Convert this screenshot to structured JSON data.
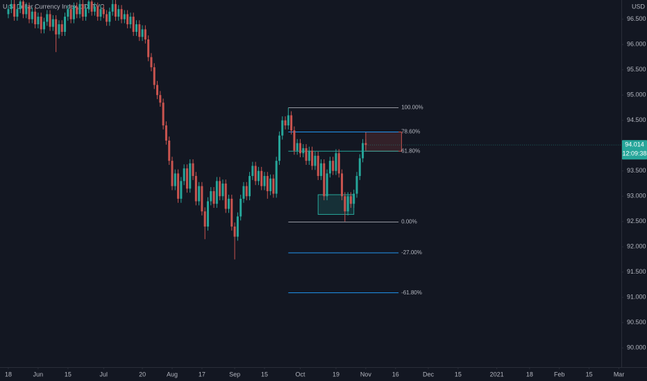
{
  "chart_data": {
    "type": "candlestick",
    "title": "U.S. Dollar Currency Index, 1D, TVC",
    "currency": "USD",
    "countdown": "12:09:38",
    "last_price": 94.014,
    "up_color": "#26a69a",
    "down_color": "#c9544f",
    "ylim": [
      89.62,
      96.88
    ],
    "yticks": [
      {
        "value": 90,
        "label": "90.000"
      },
      {
        "value": 90.5,
        "label": "90.500"
      },
      {
        "value": 91,
        "label": "91.000"
      },
      {
        "value": 91.5,
        "label": "91.500"
      },
      {
        "value": 92,
        "label": "92.000"
      },
      {
        "value": 92.5,
        "label": "92.500"
      },
      {
        "value": 93,
        "label": "93.000"
      },
      {
        "value": 93.5,
        "label": "93.500"
      },
      {
        "value": 94.5,
        "label": "94.500"
      },
      {
        "value": 95,
        "label": "95.000"
      },
      {
        "value": 95.5,
        "label": "95.500"
      },
      {
        "value": 96,
        "label": "96.000"
      },
      {
        "value": 96.5,
        "label": "96.500"
      }
    ],
    "xlim": [
      -2.8,
      205.8
    ],
    "xticks": [
      {
        "value": 0,
        "label": "18"
      },
      {
        "value": 10,
        "label": "Jun"
      },
      {
        "value": 20,
        "label": "15"
      },
      {
        "value": 32,
        "label": "Jul"
      },
      {
        "value": 45,
        "label": "20"
      },
      {
        "value": 55,
        "label": "Aug"
      },
      {
        "value": 65,
        "label": "17"
      },
      {
        "value": 76,
        "label": "Sep"
      },
      {
        "value": 86,
        "label": "15"
      },
      {
        "value": 98,
        "label": "Oct"
      },
      {
        "value": 110,
        "label": "19"
      },
      {
        "value": 120,
        "label": "Nov"
      },
      {
        "value": 130,
        "label": "16"
      },
      {
        "value": 141,
        "label": "Dec"
      },
      {
        "value": 151,
        "label": "15"
      },
      {
        "value": 164,
        "label": "2021"
      },
      {
        "value": 175,
        "label": "18"
      },
      {
        "value": 185,
        "label": "Feb"
      },
      {
        "value": 195,
        "label": "15"
      },
      {
        "value": 205,
        "label": "Mar"
      }
    ],
    "candles": [
      [
        96.6,
        96.78,
        96.52,
        96.7
      ],
      [
        96.7,
        96.88,
        96.62,
        96.8
      ],
      [
        96.8,
        96.88,
        96.47,
        96.55
      ],
      [
        96.55,
        96.78,
        96.47,
        96.7
      ],
      [
        96.7,
        96.93,
        96.62,
        96.85
      ],
      [
        96.85,
        96.93,
        96.52,
        96.6
      ],
      [
        96.6,
        96.83,
        96.52,
        96.75
      ],
      [
        96.75,
        96.83,
        96.42,
        96.5
      ],
      [
        96.5,
        96.73,
        96.42,
        96.65
      ],
      [
        96.65,
        96.73,
        96.32,
        96.4
      ],
      [
        96.4,
        96.63,
        96.32,
        96.55
      ],
      [
        96.55,
        96.63,
        96.22,
        96.3
      ],
      [
        96.3,
        96.53,
        96.22,
        96.45
      ],
      [
        96.45,
        96.68,
        96.37,
        96.6
      ],
      [
        96.6,
        96.68,
        96.27,
        96.35
      ],
      [
        96.35,
        96.58,
        96.27,
        96.5
      ],
      [
        96.5,
        96.58,
        95.85,
        96.2
      ],
      [
        96.2,
        96.48,
        96.12,
        96.4
      ],
      [
        96.4,
        96.48,
        96.17,
        96.25
      ],
      [
        96.25,
        96.63,
        96.17,
        96.55
      ],
      [
        96.55,
        96.78,
        96.47,
        96.7
      ],
      [
        96.7,
        96.78,
        96.42,
        96.5
      ],
      [
        96.5,
        96.83,
        96.42,
        96.75
      ],
      [
        96.75,
        96.83,
        96.52,
        96.6
      ],
      [
        96.6,
        96.88,
        96.52,
        96.8
      ],
      [
        96.8,
        96.88,
        96.47,
        96.55
      ],
      [
        96.55,
        96.78,
        96.47,
        96.7
      ],
      [
        96.7,
        96.93,
        96.62,
        96.85
      ],
      [
        96.85,
        96.93,
        96.57,
        96.65
      ],
      [
        96.65,
        96.83,
        96.57,
        96.75
      ],
      [
        96.75,
        96.83,
        96.47,
        96.55
      ],
      [
        96.55,
        96.78,
        96.47,
        96.7
      ],
      [
        96.7,
        96.78,
        96.52,
        96.6
      ],
      [
        96.6,
        96.68,
        96.37,
        96.45
      ],
      [
        96.45,
        96.73,
        96.37,
        96.65
      ],
      [
        96.65,
        96.88,
        96.57,
        96.8
      ],
      [
        96.8,
        96.88,
        96.47,
        96.55
      ],
      [
        96.55,
        96.78,
        96.47,
        96.7
      ],
      [
        96.7,
        96.78,
        96.42,
        96.5
      ],
      [
        96.5,
        96.68,
        96.42,
        96.6
      ],
      [
        96.6,
        96.68,
        96.32,
        96.4
      ],
      [
        96.4,
        96.63,
        96.32,
        96.55
      ],
      [
        96.55,
        96.63,
        96.17,
        96.25
      ],
      [
        96.25,
        96.48,
        96.17,
        96.4
      ],
      [
        96.4,
        96.48,
        96.07,
        96.15
      ],
      [
        96.15,
        96.38,
        96.07,
        96.3
      ],
      [
        96.3,
        96.38,
        96.02,
        96.1
      ],
      [
        96.1,
        96.18,
        95.67,
        95.75
      ],
      [
        95.75,
        95.83,
        95.47,
        95.55
      ],
      [
        95.55,
        95.63,
        95.12,
        95.2
      ],
      [
        95.2,
        95.28,
        94.92,
        95.0
      ],
      [
        95.0,
        95.08,
        94.77,
        94.85
      ],
      [
        94.85,
        94.93,
        94.32,
        94.4
      ],
      [
        94.4,
        94.48,
        94.02,
        94.1
      ],
      [
        94.1,
        94.18,
        93.62,
        93.7
      ],
      [
        93.7,
        93.78,
        93.12,
        93.2
      ],
      [
        93.2,
        93.53,
        93.12,
        93.45
      ],
      [
        93.45,
        93.53,
        92.87,
        92.95
      ],
      [
        92.95,
        93.38,
        92.87,
        93.3
      ],
      [
        93.3,
        93.63,
        93.22,
        93.55
      ],
      [
        93.55,
        93.63,
        93.07,
        93.15
      ],
      [
        93.15,
        93.73,
        93.07,
        93.65
      ],
      [
        93.65,
        93.73,
        93.32,
        93.4
      ],
      [
        93.4,
        93.48,
        92.82,
        92.9
      ],
      [
        92.9,
        93.28,
        92.82,
        93.2
      ],
      [
        93.2,
        93.28,
        92.62,
        92.7
      ],
      [
        92.7,
        92.78,
        92.15,
        92.4
      ],
      [
        92.4,
        92.98,
        92.32,
        92.9
      ],
      [
        92.9,
        93.18,
        92.82,
        93.1
      ],
      [
        93.1,
        93.18,
        92.77,
        92.85
      ],
      [
        92.85,
        93.38,
        92.77,
        93.3
      ],
      [
        93.3,
        93.38,
        92.92,
        93.0
      ],
      [
        93.0,
        93.33,
        92.92,
        93.25
      ],
      [
        93.25,
        93.33,
        92.67,
        92.75
      ],
      [
        92.75,
        93.03,
        92.67,
        92.95
      ],
      [
        92.95,
        93.03,
        92.32,
        92.4
      ],
      [
        92.4,
        92.48,
        91.75,
        92.2
      ],
      [
        92.2,
        92.68,
        92.12,
        92.6
      ],
      [
        92.6,
        93.03,
        92.52,
        92.95
      ],
      [
        92.95,
        93.28,
        92.87,
        93.2
      ],
      [
        93.2,
        93.28,
        92.92,
        93.0
      ],
      [
        93.0,
        93.48,
        92.92,
        93.4
      ],
      [
        93.4,
        93.68,
        93.32,
        93.6
      ],
      [
        93.6,
        93.68,
        93.22,
        93.3
      ],
      [
        93.3,
        93.58,
        93.22,
        93.5
      ],
      [
        93.5,
        93.58,
        93.12,
        93.2
      ],
      [
        93.2,
        93.48,
        93.12,
        93.4
      ],
      [
        93.4,
        93.48,
        92.95,
        93.1
      ],
      [
        93.1,
        93.43,
        93.02,
        93.35
      ],
      [
        93.35,
        93.43,
        92.97,
        93.05
      ],
      [
        93.05,
        93.78,
        92.97,
        93.7
      ],
      [
        93.7,
        94.28,
        93.62,
        94.2
      ],
      [
        94.2,
        94.58,
        94.12,
        94.5
      ],
      [
        94.5,
        94.58,
        94.32,
        94.4
      ],
      [
        94.4,
        94.75,
        94.32,
        94.6
      ],
      [
        94.6,
        94.68,
        94.22,
        94.3
      ],
      [
        94.3,
        94.38,
        93.82,
        93.9
      ],
      [
        93.9,
        94.13,
        93.82,
        94.05
      ],
      [
        94.05,
        94.13,
        93.77,
        93.85
      ],
      [
        93.85,
        94.03,
        93.77,
        93.95
      ],
      [
        93.95,
        94.03,
        93.62,
        93.7
      ],
      [
        93.7,
        93.98,
        93.62,
        93.9
      ],
      [
        93.9,
        93.98,
        93.52,
        93.6
      ],
      [
        93.6,
        93.88,
        93.52,
        93.8
      ],
      [
        93.8,
        93.88,
        93.32,
        93.4
      ],
      [
        93.4,
        93.73,
        93.32,
        93.65
      ],
      [
        93.65,
        93.73,
        92.92,
        93.0
      ],
      [
        93.0,
        93.53,
        92.92,
        93.45
      ],
      [
        93.45,
        93.78,
        93.37,
        93.7
      ],
      [
        93.7,
        93.78,
        93.42,
        93.5
      ],
      [
        93.5,
        93.93,
        93.42,
        93.85
      ],
      [
        93.85,
        93.93,
        93.37,
        93.45
      ],
      [
        93.45,
        93.53,
        92.92,
        93.0
      ],
      [
        93.0,
        93.08,
        92.5,
        92.7
      ],
      [
        92.7,
        93.08,
        92.62,
        93.0
      ],
      [
        93.0,
        93.08,
        92.77,
        92.85
      ],
      [
        92.85,
        93.13,
        92.77,
        93.05
      ],
      [
        93.05,
        93.48,
        92.97,
        93.4
      ],
      [
        93.4,
        93.83,
        93.32,
        93.75
      ],
      [
        93.75,
        94.13,
        93.67,
        94.05
      ],
      [
        94.05,
        94.13,
        93.92,
        94.014
      ]
    ],
    "fib": {
      "x_start": 94,
      "x_end": 131,
      "levels": [
        {
          "price": 94.75,
          "label": "100.00%",
          "color": "#9598a1"
        },
        {
          "price": 94.27,
          "label": "78.60%",
          "color": "#2196f3"
        },
        {
          "price": 93.89,
          "label": "61.80%",
          "color": "#26a69a"
        },
        {
          "price": 92.49,
          "label": "0.00%",
          "color": "#9598a1"
        },
        {
          "price": 91.88,
          "label": "-27.00%",
          "color": "#2196f3"
        },
        {
          "price": 91.09,
          "label": "-61.80%",
          "color": "#2196f3"
        }
      ]
    },
    "boxes": [
      {
        "x_start": 120,
        "x_end": 132,
        "top": 94.27,
        "bottom": 93.89,
        "color": "#c9544f"
      },
      {
        "x_start": 104,
        "x_end": 116,
        "top": 93.03,
        "bottom": 92.64,
        "color": "#26a69a"
      }
    ]
  }
}
